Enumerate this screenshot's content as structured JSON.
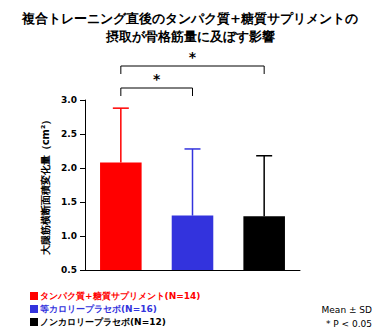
{
  "chart_data": {
    "type": "bar",
    "title": "複合トレーニング直後のタンパク質+糖質サプリメントの\n摂取が骨格筋量に及ぼす影響",
    "y_label": "大腿筋横断面積変化量（cm²）",
    "categories": [
      "タンパク質+糖質サプリメント(N=14)",
      "等カロリープラセボ(N=16)",
      "ノンカロリープラセボ(N=12)"
    ],
    "values": [
      2.08,
      1.3,
      1.29
    ],
    "sd": [
      0.8,
      0.98,
      0.89
    ],
    "colors": [
      "#ff0000",
      "#3333dd",
      "#000000"
    ],
    "ylim": [
      0.5,
      3.0
    ],
    "yticks": [
      0.5,
      {
        "value": 1,
        "label": "1.0"
      },
      1.5,
      {
        "value": 2,
        "label": "2.0"
      },
      2.5,
      {
        "value": 3,
        "label": "3.0"
      }
    ],
    "grid": false,
    "tick_labels": "y",
    "significance": [
      {
        "from": 0,
        "to": 1,
        "label": "*"
      },
      {
        "from": 0,
        "to": 2,
        "label": "*"
      }
    ],
    "notes": [
      "Mean ± SD",
      "* P < 0.05"
    ]
  }
}
